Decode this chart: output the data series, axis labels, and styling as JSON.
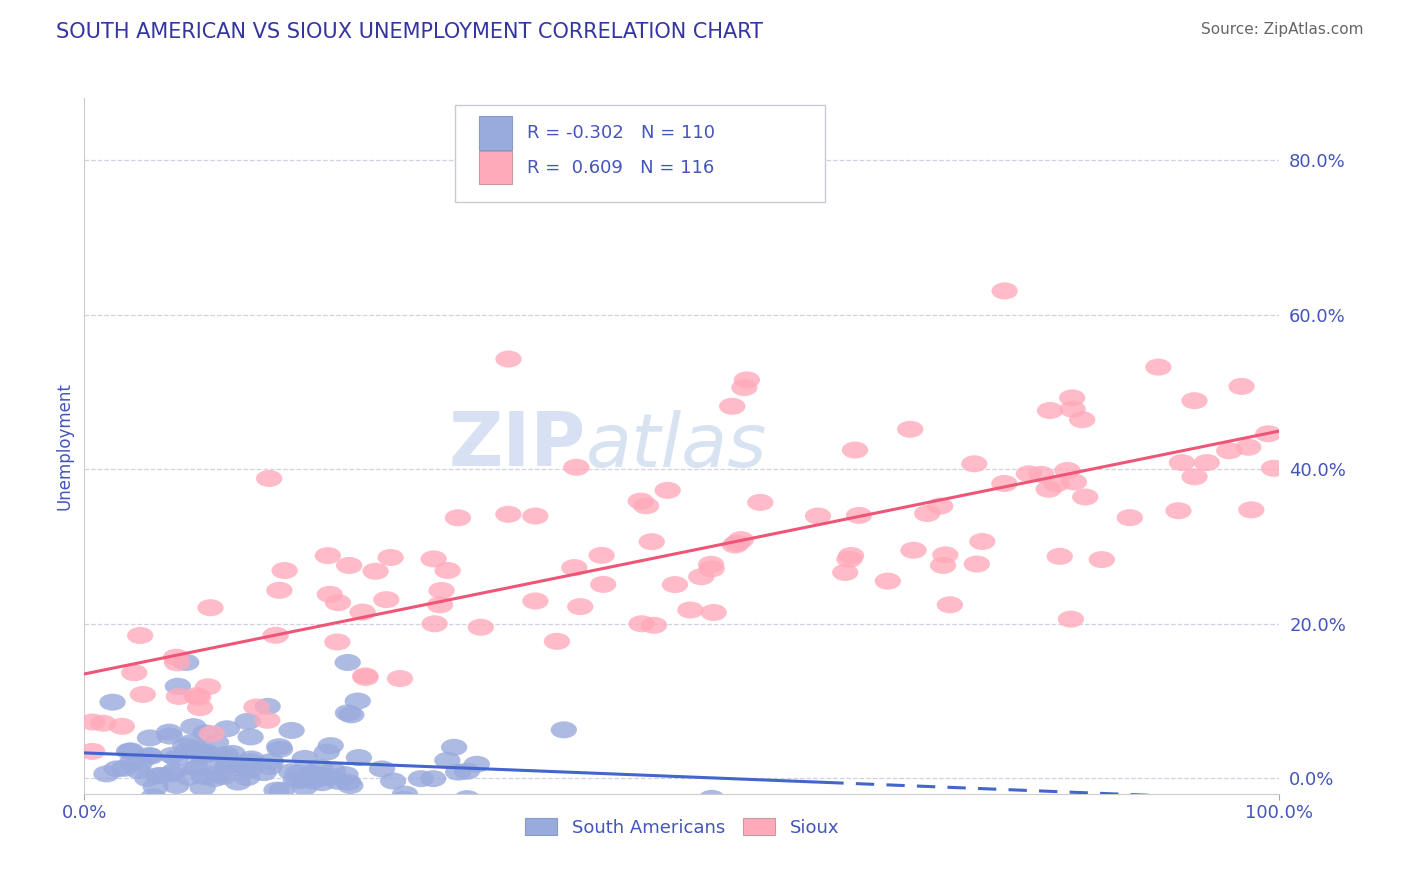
{
  "title": "SOUTH AMERICAN VS SIOUX UNEMPLOYMENT CORRELATION CHART",
  "source": "Source: ZipAtlas.com",
  "ylabel": "Unemployment",
  "xlim": [
    0.0,
    1.0
  ],
  "ylim": [
    -0.02,
    0.88
  ],
  "yticks": [
    0.0,
    0.2,
    0.4,
    0.6,
    0.8
  ],
  "xticks": [
    0.0,
    1.0
  ],
  "xtick_labels": [
    "0.0%",
    "100.0%"
  ],
  "legend_label1": "South Americans",
  "legend_label2": "Sioux",
  "title_color": "#3535a0",
  "source_color": "#666666",
  "axis_color": "#4455bb",
  "scatter_color_blue": "#99aadd",
  "scatter_color_pink": "#ffaabb",
  "line_color_blue": "#4466cc",
  "line_color_pink": "#ee5577",
  "watermark_zip": "ZIP",
  "watermark_atlas": "atlas",
  "background_color": "#ffffff",
  "grid_color": "#ccccdd",
  "n_sa": 110,
  "n_sioux": 116,
  "r_sa": -0.302,
  "r_sioux": 0.609,
  "sa_seed": 42,
  "sioux_seed": 99
}
